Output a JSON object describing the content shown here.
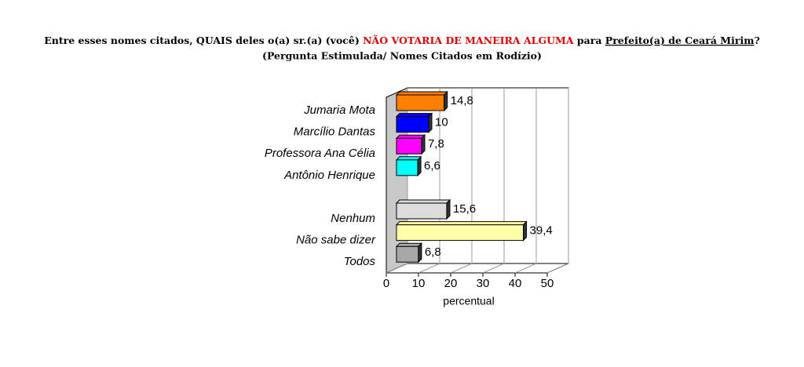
{
  "chart_data": {
    "type": "bar",
    "title_parts": [
      "Entre esses nomes citados, QUAIS deles o(a) sr.(a) (você) ",
      "NÃO VOTARIA  DE MANEIRA ALGUMA",
      "  para ",
      "Prefeito(a) de Ceará Mirim",
      "?"
    ],
    "subtitle": "(Pergunta Estimulada/ Nomes Citados em Rodízio)",
    "categories": [
      "Jumaria Mota",
      "Marcílio Dantas",
      "Professora Ana Célia",
      "Antônio Henrique",
      null,
      "Nenhum",
      "Não sabe dizer",
      "Todos"
    ],
    "values": [
      14.8,
      10,
      7.8,
      6.6,
      null,
      15.6,
      39.4,
      6.8
    ],
    "value_labels": [
      "14,8",
      "10",
      "7,8",
      "6,6",
      null,
      "15,6",
      "39,4",
      "6,8"
    ],
    "colors": [
      "#ff8000",
      "#0000ff",
      "#ff00ff",
      "#00ffff",
      null,
      "#dcdcdc",
      "#ffffa8",
      "#a8a8a8"
    ],
    "xlabel": "percentual",
    "xlim": [
      0,
      50
    ],
    "xticks": [
      0,
      10,
      20,
      30,
      40,
      50
    ],
    "grid": true
  }
}
